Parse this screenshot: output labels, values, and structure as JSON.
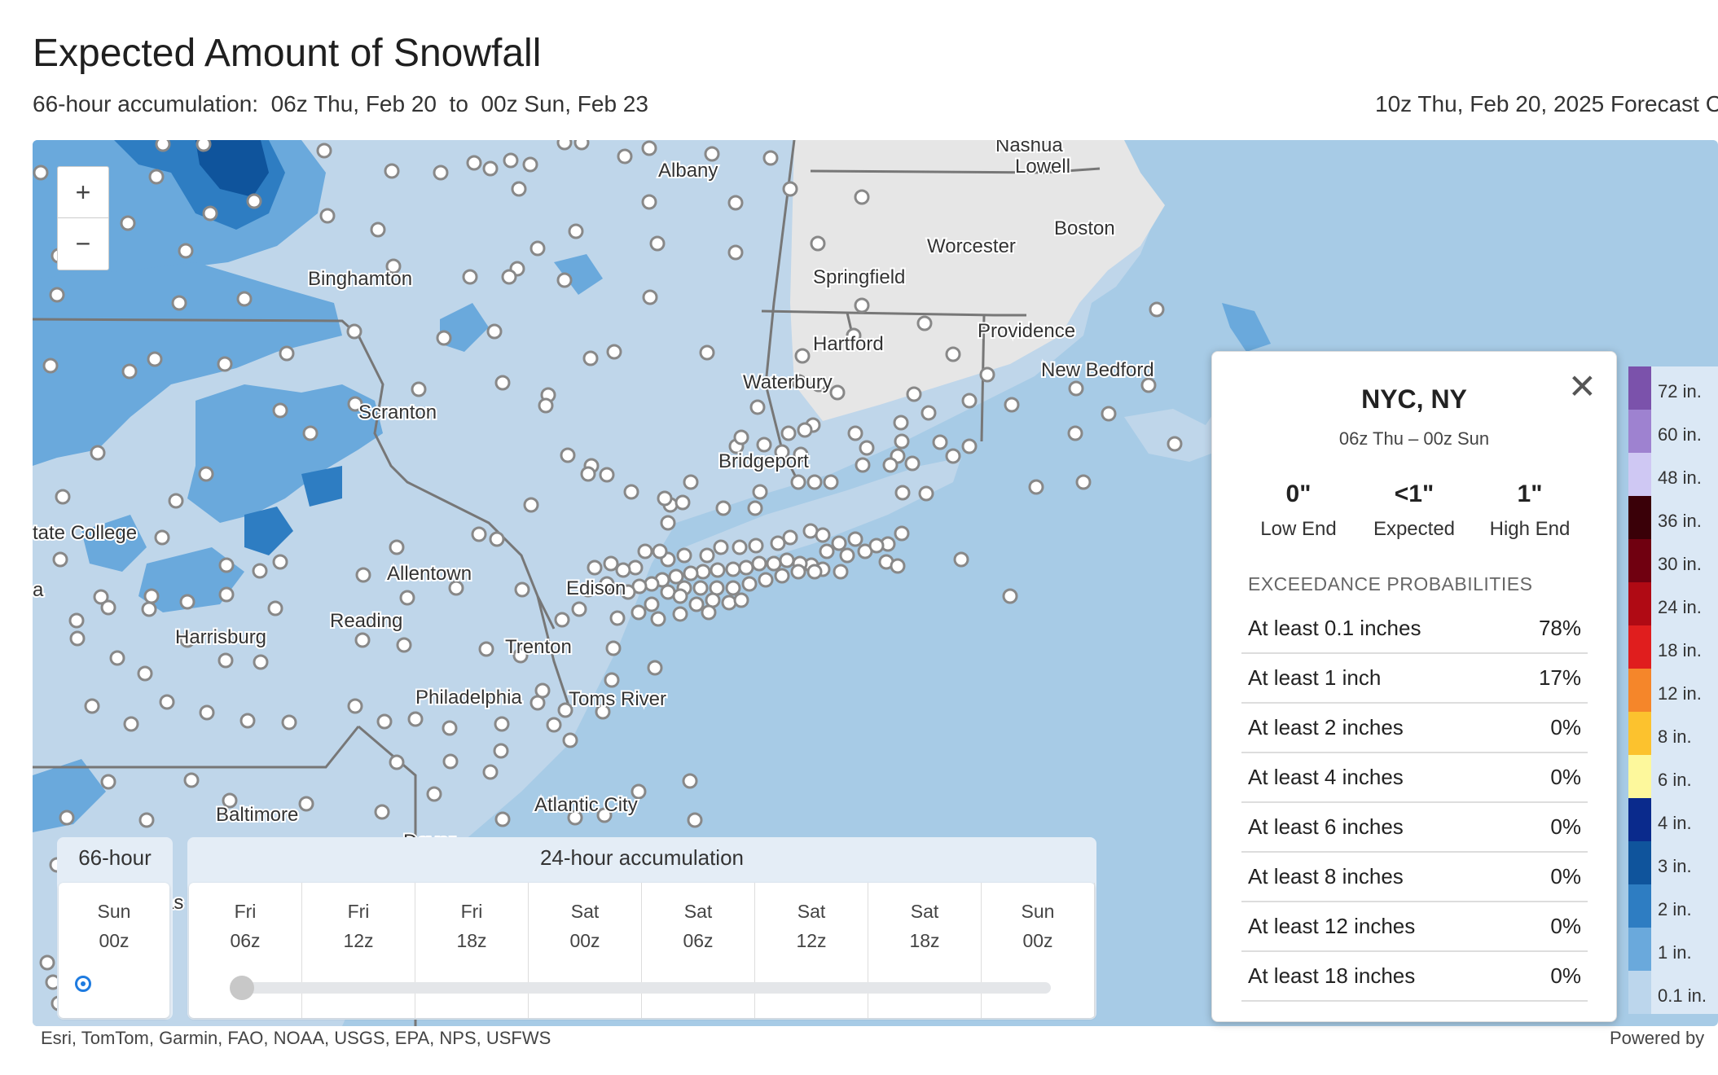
{
  "header": {
    "title": "Expected Amount of Snowfall",
    "subtitle": "66-hour accumulation:  06z Thu, Feb 20  to  00z Sun, Feb 23",
    "forecast_cycle": "10z Thu, Feb 20, 2025 Forecast C"
  },
  "map": {
    "zoom_in": "+",
    "zoom_out": "−",
    "cities": [
      "Albany",
      "Nashua",
      "Lowell",
      "Boston",
      "Worcester",
      "Springfield",
      "Binghamton",
      "Hartford",
      "Providence",
      "New Bedford",
      "Waterbury",
      "Scranton",
      "Bridgeport",
      "tate College",
      "Allentown",
      "Edison",
      "Reading",
      "Harrisburg",
      "Trenton",
      "Philadelphia",
      "Toms River",
      "Baltimore",
      "Atlantic City",
      "Dover",
      "a",
      "as"
    ],
    "attribution": "Esri, TomTom, Garmin, FAO, NOAA, USGS, EPA, NPS, USFWS",
    "powered_by": "Powered by"
  },
  "popup": {
    "close_icon": "✕",
    "location": "NYC, NY",
    "period": "06z Thu  –  00z Sun",
    "low": {
      "value": "0\"",
      "label": "Low End"
    },
    "expected": {
      "value": "<1\"",
      "label": "Expected"
    },
    "high": {
      "value": "1\"",
      "label": "High End"
    },
    "exceedance_heading": "EXCEEDANCE PROBABILITIES",
    "rows": [
      {
        "label": "At least 0.1 inches",
        "value": "78%"
      },
      {
        "label": "At least 1 inch",
        "value": "17%"
      },
      {
        "label": "At least 2 inches",
        "value": "0%"
      },
      {
        "label": "At least 4 inches",
        "value": "0%"
      },
      {
        "label": "At least 6 inches",
        "value": "0%"
      },
      {
        "label": "At least 8 inches",
        "value": "0%"
      },
      {
        "label": "At least 12 inches",
        "value": "0%"
      },
      {
        "label": "At least 18 inches",
        "value": "0%"
      }
    ]
  },
  "legend": [
    {
      "label": "72 in.",
      "color": "#7b52ab"
    },
    {
      "label": "60 in.",
      "color": "#9e82d0"
    },
    {
      "label": "48 in.",
      "color": "#cfc8f3"
    },
    {
      "label": "36 in.",
      "color": "#3a0008"
    },
    {
      "label": "30 in.",
      "color": "#700010"
    },
    {
      "label": "24 in.",
      "color": "#b00a14"
    },
    {
      "label": "18 in.",
      "color": "#e01e1e"
    },
    {
      "label": "12 in.",
      "color": "#f5862a"
    },
    {
      "label": "8 in.",
      "color": "#fcc22e"
    },
    {
      "label": "6 in.",
      "color": "#fdf89c"
    },
    {
      "label": "4 in.",
      "color": "#0a2a8c"
    },
    {
      "label": "3 in.",
      "color": "#0f549c"
    },
    {
      "label": "2 in.",
      "color": "#2e7dc2"
    },
    {
      "label": "1 in.",
      "color": "#6aa9dc"
    },
    {
      "label": "0.1 in.",
      "color": "#bcd6ec"
    }
  ],
  "controls": {
    "total": {
      "heading": "66-hour",
      "day": "Sun",
      "hour": "00z"
    },
    "accum_heading": "24-hour accumulation",
    "steps": [
      {
        "day": "Fri",
        "hour": "06z"
      },
      {
        "day": "Fri",
        "hour": "12z"
      },
      {
        "day": "Fri",
        "hour": "18z"
      },
      {
        "day": "Sat",
        "hour": "00z"
      },
      {
        "day": "Sat",
        "hour": "06z"
      },
      {
        "day": "Sat",
        "hour": "12z"
      },
      {
        "day": "Sat",
        "hour": "18z"
      },
      {
        "day": "Sun",
        "hour": "00z"
      }
    ],
    "selected_step": 0
  }
}
